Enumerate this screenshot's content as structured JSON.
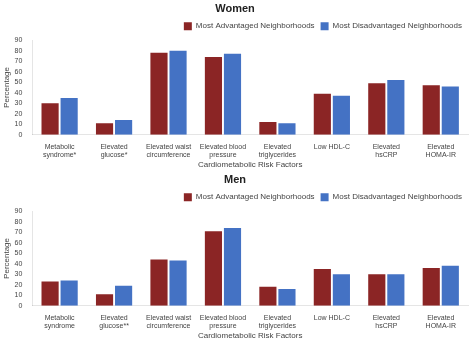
{
  "chart_data": [
    {
      "type": "bar",
      "title": "Women",
      "categories": [
        "Metabolic\nsyndrome*",
        "Elevated\nglucose*",
        "Elevated waist\ncircumference",
        "Elevated blood\npressure",
        "Elevated\ntriglycerides",
        "Low HDL-C",
        "Elevated\nhsCRP",
        "Elevated\nHOMA-IR"
      ],
      "series": [
        {
          "name": "Most Advantaged Neighborhoods",
          "color": "#8B2525",
          "values": [
            30,
            11,
            78,
            74,
            12,
            39,
            49,
            47
          ]
        },
        {
          "name": "Most Disadvantaged Neighborhoods",
          "color": "#4472C4",
          "values": [
            35,
            14,
            80,
            77,
            11,
            37,
            52,
            46
          ]
        }
      ],
      "xlabel": "Cardiometabolic Risk Factors",
      "ylabel": "Percentage",
      "ylim": [
        0,
        90
      ],
      "yticks": [
        0,
        10,
        20,
        30,
        40,
        50,
        60,
        70,
        80,
        90
      ],
      "grid": false,
      "legend": "upper right"
    },
    {
      "type": "bar",
      "title": "Men",
      "categories": [
        "Metabolic\nsyndrome",
        "Elevated\nglucose**",
        "Elevated waist\ncircumference",
        "Elevated blood\npressure",
        "Elevated\ntriglycerides",
        "Low HDL-C",
        "Elevated\nhsCRP",
        "Elevated\nHOMA-IR"
      ],
      "series": [
        {
          "name": "Most Advantaged Neighborhoods",
          "color": "#8B2525",
          "values": [
            23,
            11,
            44,
            71,
            18,
            35,
            30,
            36
          ]
        },
        {
          "name": "Most Disadvantaged Neighborhoods",
          "color": "#4472C4",
          "values": [
            24,
            19,
            43,
            74,
            16,
            30,
            30,
            38
          ]
        }
      ],
      "xlabel": "Cardiometabolic Risk Factors",
      "ylabel": "Percentage",
      "ylim": [
        0,
        90
      ],
      "yticks": [
        0,
        10,
        20,
        30,
        40,
        50,
        60,
        70,
        80,
        90
      ],
      "grid": false,
      "legend": "upper right"
    }
  ]
}
